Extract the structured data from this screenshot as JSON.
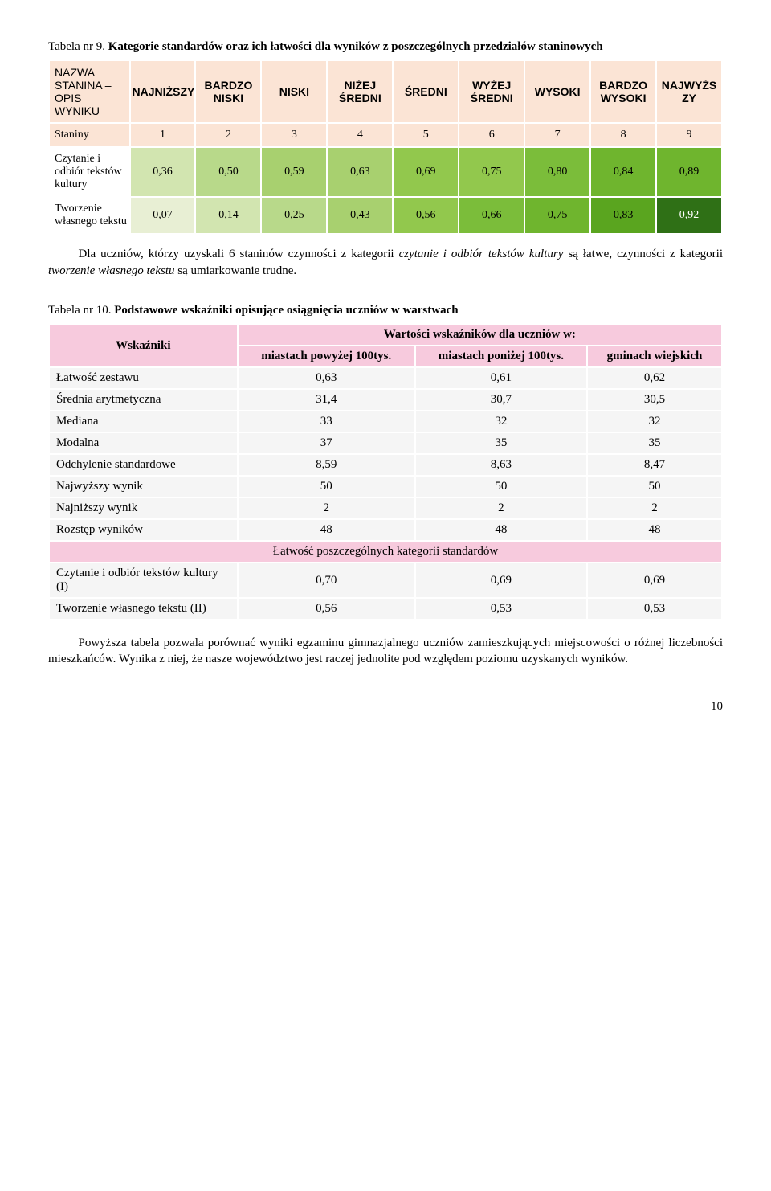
{
  "t9": {
    "caption_a": "Tabela nr 9. ",
    "caption_b": "Kategorie standardów oraz ich łatwości dla wyników z poszczególnych przedziałów staninowych",
    "col_labels": [
      "NAZWA STANINA – OPIS WYNIKU",
      "NAJNIŻSZY",
      "BARDZO NISKI",
      "NISKI",
      "NIŻEJ ŚREDNI",
      "ŚREDNI",
      "WYŻEJ ŚREDNI",
      "WYSOKI",
      "BARDZO WYSOKI",
      "NAJWYŻS ZY"
    ],
    "staniny_label": "Staniny",
    "staniny": [
      "1",
      "2",
      "3",
      "4",
      "5",
      "6",
      "7",
      "8",
      "9"
    ],
    "row1_label": "Czytanie i odbiór tekstów kultury",
    "row1": [
      "0,36",
      "0,50",
      "0,59",
      "0,63",
      "0,69",
      "0,75",
      "0,80",
      "0,84",
      "0,89"
    ],
    "row1_colors": [
      "#d2e5b0",
      "#b8d98a",
      "#a8d06f",
      "#a8d06f",
      "#92c84d",
      "#92c84d",
      "#7bbd3a",
      "#6fb52e",
      "#6fb52e"
    ],
    "row2_label": "Tworzenie własnego tekstu",
    "row2": [
      "0,07",
      "0,14",
      "0,25",
      "0,43",
      "0,56",
      "0,66",
      "0,75",
      "0,83",
      "0,92"
    ],
    "row2_colors": [
      "#e8efd4",
      "#d2e5b0",
      "#b8d98a",
      "#a8d06f",
      "#92c84d",
      "#7bbd3a",
      "#6fb52e",
      "#5aa51f",
      "#2f7016"
    ],
    "para_before": "Dla uczniów, którzy uzyskali 6 staninów czynności z kategorii ",
    "para_ital1": "czytanie i odbiór tekstów kultury",
    "para_mid": " są łatwe, czynności z kategorii ",
    "para_ital2": "tworzenie własnego tekstu",
    "para_after": " są umiarkowanie trudne.",
    "header_row_bg": "#fbe4d5"
  },
  "t10": {
    "caption_a": "Tabela nr 10. ",
    "caption_b": "Podstawowe wskaźniki opisujące osiągnięcia uczniów w warstwach",
    "hdr_wsk": "Wskaźniki",
    "hdr_merged": "Wartości wskaźników dla uczniów w:",
    "hdr_c1": "miastach powyżej 100tys.",
    "hdr_c2": "miastach poniżej 100tys.",
    "hdr_c3": "gminach wiejskich",
    "rows": [
      [
        "Łatwość zestawu",
        "0,63",
        "0,61",
        "0,62"
      ],
      [
        "Średnia arytmetyczna",
        "31,4",
        "30,7",
        "30,5"
      ],
      [
        "Mediana",
        "33",
        "32",
        "32"
      ],
      [
        "Modalna",
        "37",
        "35",
        "35"
      ],
      [
        "Odchylenie standardowe",
        "8,59",
        "8,63",
        "8,47"
      ],
      [
        "Najwyższy wynik",
        "50",
        "50",
        "50"
      ],
      [
        "Najniższy wynik",
        "2",
        "2",
        "2"
      ],
      [
        "Rozstęp wyników",
        "48",
        "48",
        "48"
      ]
    ],
    "mid_merged": "Łatwość poszczególnych kategorii standardów",
    "rowA_label": "Czytanie i odbiór tekstów kultury (I)",
    "rowA": [
      "0,70",
      "0,69",
      "0,69"
    ],
    "rowB_label": "Tworzenie własnego tekstu (II)",
    "rowB": [
      "0,56",
      "0,53",
      "0,53"
    ],
    "header_bg": "#f7cadd",
    "body_bg": "#f5f5f5"
  },
  "para2": "Powyższa tabela pozwala porównać wyniki egzaminu gimnazjalnego uczniów zamieszkujących miejscowości o różnej liczebności mieszkańców. Wynika z niej, że nasze województwo jest raczej jednolite pod względem poziomu uzyskanych wyników.",
  "pagenum": "10"
}
